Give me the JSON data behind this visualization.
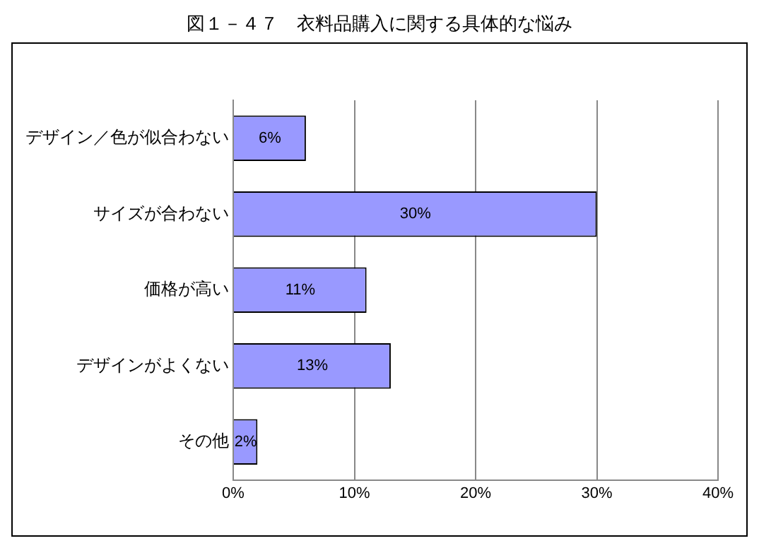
{
  "chart_data": {
    "type": "bar",
    "title": "図１－４７　衣料品購入に関する具体的な悩み",
    "orientation": "horizontal",
    "categories": [
      "デザイン／色が似合わない",
      "サイズが合わない",
      "価格が高い",
      "デザインがよくない",
      "その他"
    ],
    "values": [
      6,
      30,
      11,
      13,
      2
    ],
    "color": "#9999ff",
    "value_labels": [
      "6%",
      "30%",
      "11%",
      "13%",
      "2%"
    ],
    "xlim": [
      0,
      40
    ],
    "xticks": [
      {
        "value": 0,
        "label": "0%"
      },
      {
        "value": 10,
        "label": "10%"
      },
      {
        "value": 20,
        "label": "20%"
      },
      {
        "value": 30,
        "label": "30%"
      },
      {
        "value": 40,
        "label": "40%"
      }
    ],
    "grid": "x"
  }
}
